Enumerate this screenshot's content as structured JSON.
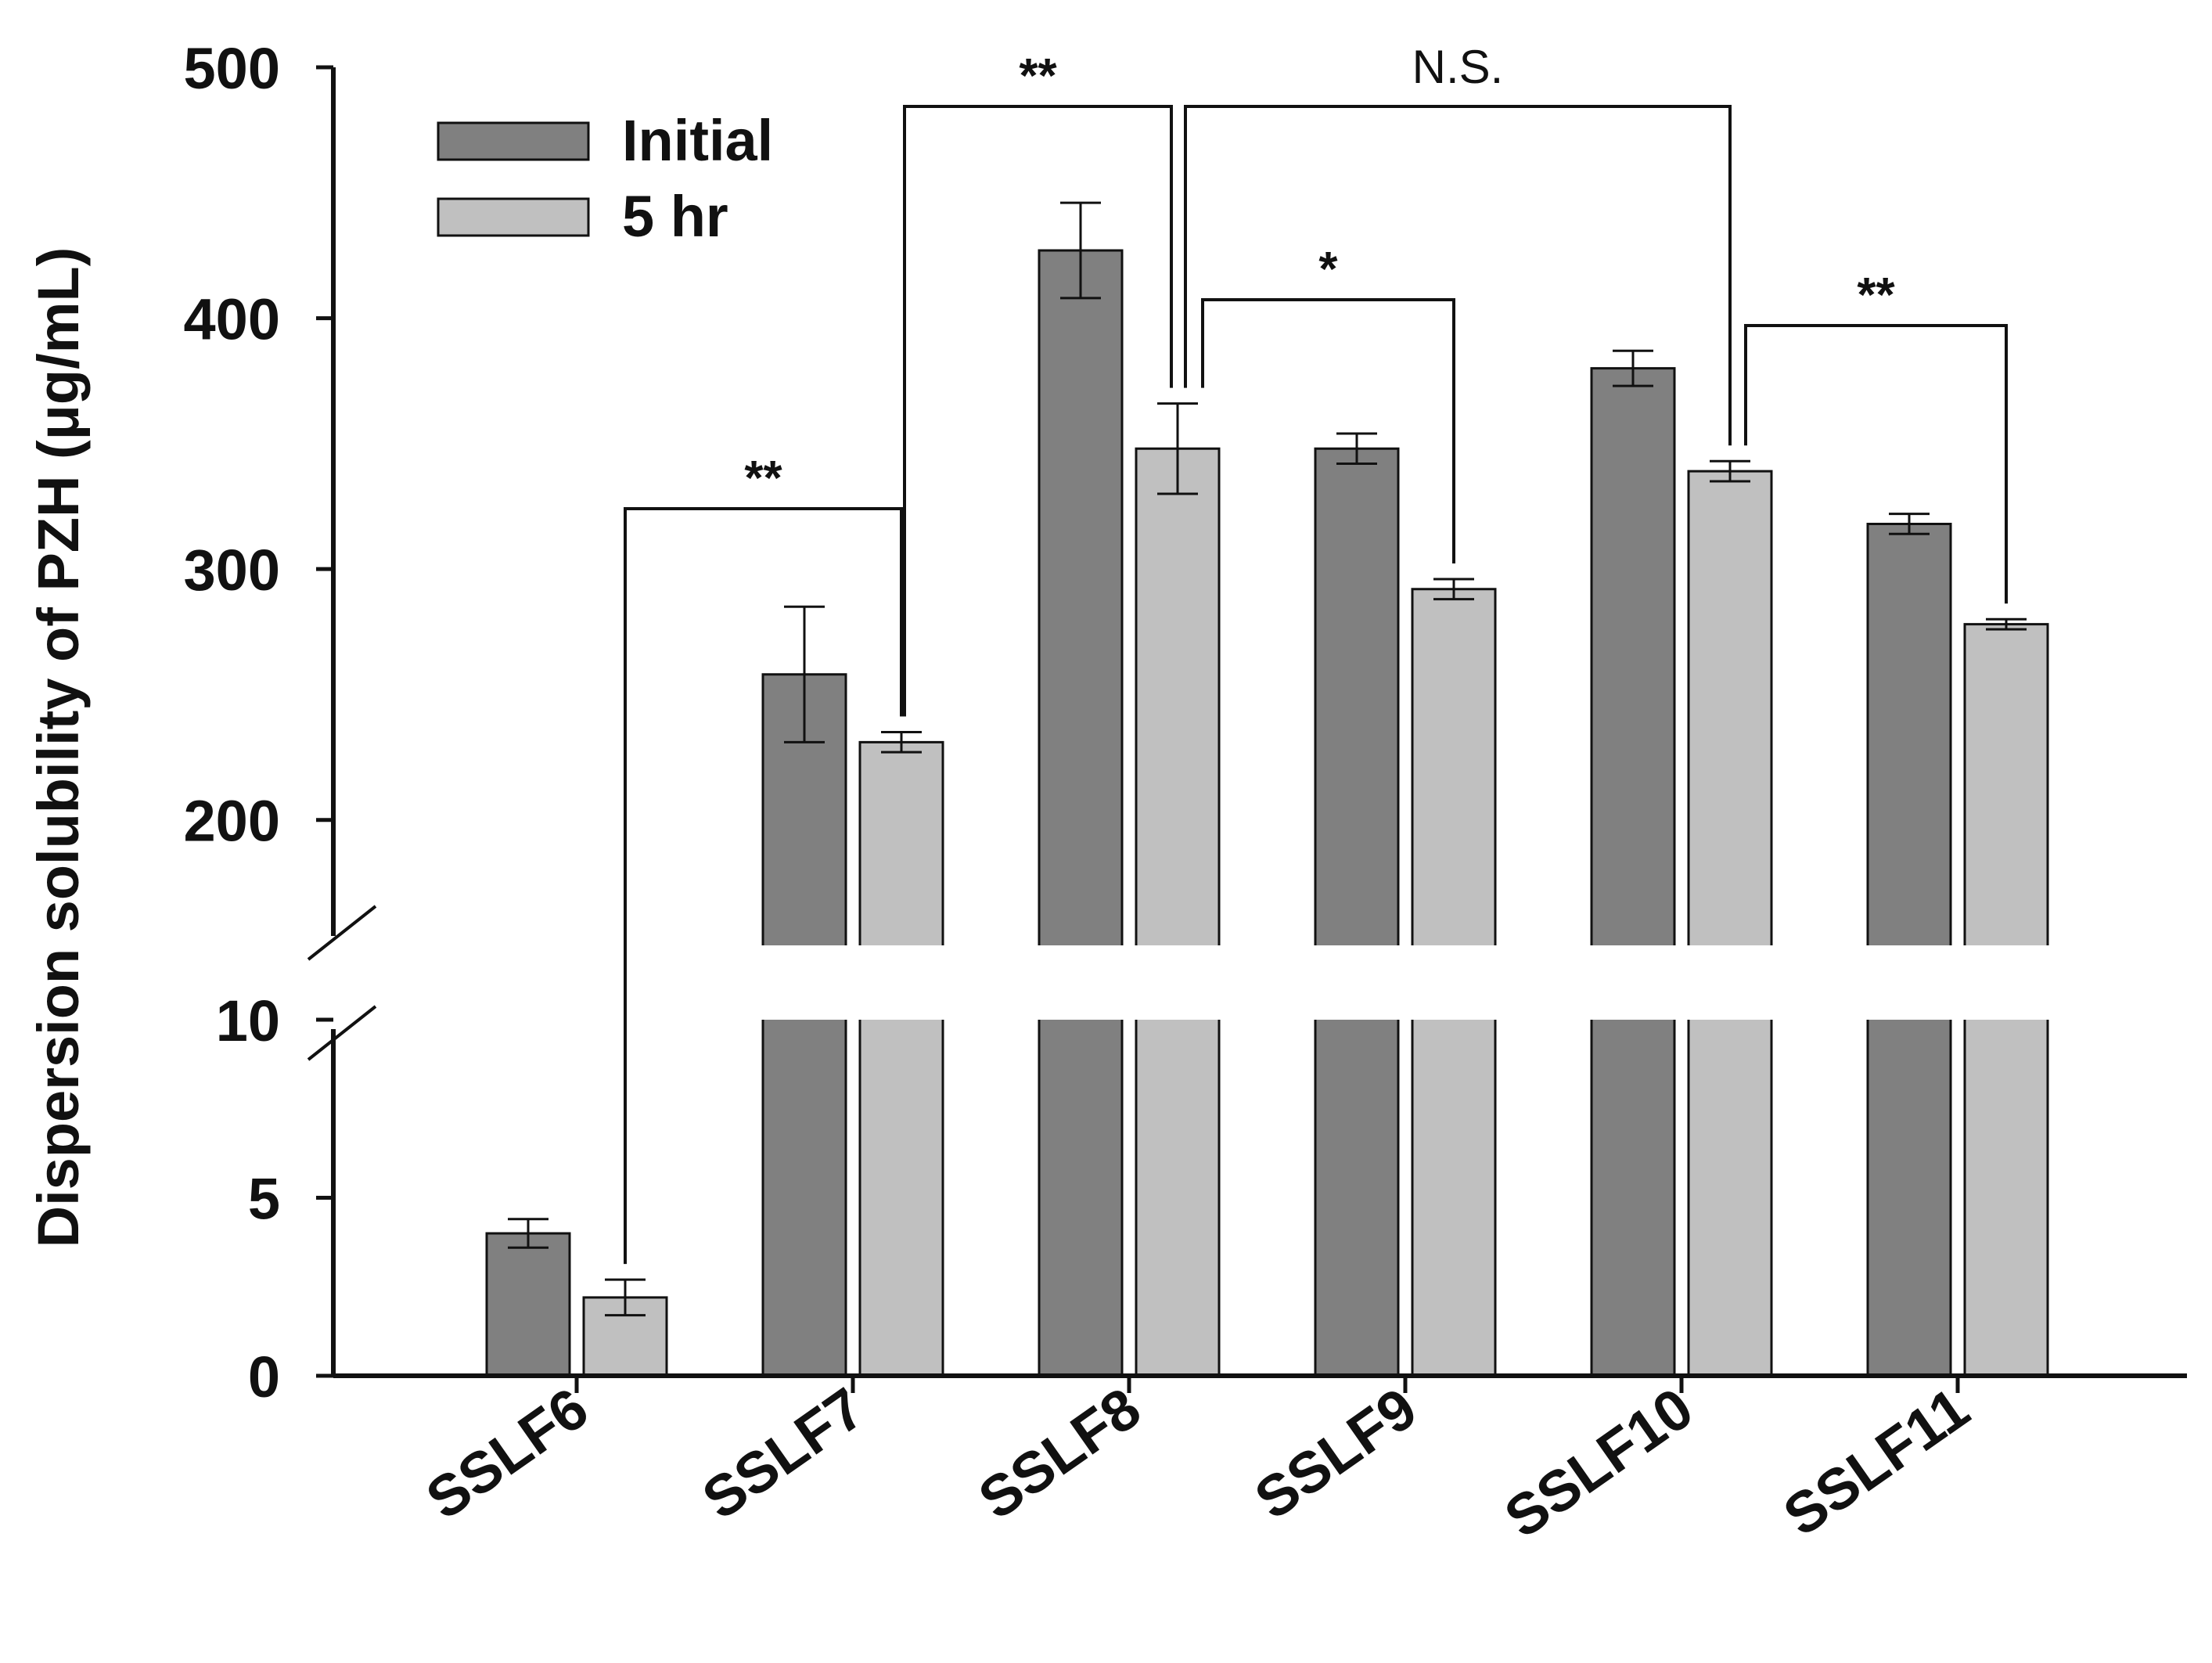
{
  "chart_data": {
    "type": "bar",
    "title": "",
    "xlabel": "",
    "ylabel": "Dispersion solubility of PZH (μg/mL)",
    "categories": [
      "SSLF6",
      "SSLF7",
      "SSLF8",
      "SSLF9",
      "SSLF10",
      "SSLF11"
    ],
    "series": [
      {
        "name": "Initial",
        "color": "#808080",
        "values": [
          4.0,
          258,
          427,
          348,
          380,
          318
        ],
        "errors": [
          0.4,
          27,
          19,
          6,
          7,
          4
        ]
      },
      {
        "name": "5 hr",
        "color": "#c0c0c0",
        "values": [
          2.2,
          231,
          348,
          292,
          339,
          278
        ],
        "errors": [
          0.5,
          4,
          18,
          4,
          4,
          2
        ]
      }
    ],
    "y_axis_broken": true,
    "y_lower_segment": {
      "ylim": [
        0,
        10
      ],
      "ticks": [
        "0",
        "5",
        "10"
      ]
    },
    "y_upper_segment": {
      "ylim": [
        150,
        500
      ],
      "ticks": [
        "200",
        "300",
        "400",
        "500"
      ]
    },
    "significance": [
      {
        "label": "**",
        "from": "SSLF6 5 hr",
        "to": "SSLF7 5 hr"
      },
      {
        "label": "**",
        "from": "SSLF7 5 hr",
        "to": "SSLF8 5 hr"
      },
      {
        "label": "N.S.",
        "from": "SSLF8 5 hr",
        "to": "SSLF10 5 hr"
      },
      {
        "label": "*",
        "from": "SSLF8 5 hr",
        "to": "SSLF9 5 hr"
      },
      {
        "label": "**",
        "from": "SSLF10 5 hr",
        "to": "SSLF11 5 hr"
      }
    ],
    "legend": {
      "position": "top-left",
      "entries": [
        "Initial",
        "5 hr"
      ]
    },
    "grid": false
  }
}
